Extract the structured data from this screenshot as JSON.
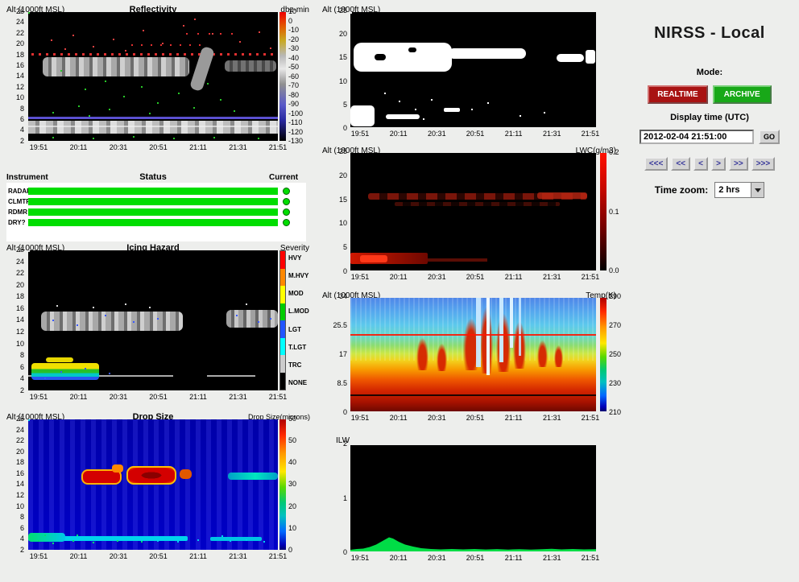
{
  "app": {
    "title": "NIRSS - Local"
  },
  "alt_axis_label": "Alt (1000ft MSL)",
  "time_axis": [
    "19:51",
    "20:11",
    "20:31",
    "20:51",
    "21:11",
    "21:31",
    "21:51"
  ],
  "controls": {
    "mode_label": "Mode:",
    "realtime_button": "REALTIME",
    "archive_button": "ARCHIVE",
    "display_time_label": "Display time (UTC)",
    "display_time_value": "2012-02-04 21:51:00",
    "go_button": "GO",
    "nav_buttons": [
      "<<<",
      "<<",
      "<",
      ">",
      ">>",
      ">>>"
    ],
    "time_zoom_label": "Time zoom:",
    "time_zoom_value": "2 hrs"
  },
  "panels": {
    "reflectivity": {
      "title": "Reflectivity",
      "colorbar_label": "dbz-min",
      "alt_ticks": [
        "26",
        "24",
        "22",
        "20",
        "18",
        "16",
        "14",
        "12",
        "10",
        "8",
        "6",
        "4",
        "2"
      ],
      "colorbar_ticks": [
        "10",
        "0",
        "-10",
        "-20",
        "-30",
        "-40",
        "-50",
        "-60",
        "-70",
        "-80",
        "-90",
        "-100",
        "-110",
        "-120",
        "-130"
      ]
    },
    "status": {
      "title": "Status",
      "instrument_label": "Instrument",
      "current_label": "Current",
      "instruments": [
        "RADAR",
        "CLMTR",
        "RDMR",
        "DRY?"
      ],
      "ok_color": "#00dd00"
    },
    "icing_hazard": {
      "title": "Icing Hazard",
      "colorbar_label": "Severity",
      "alt_ticks": [
        "26",
        "24",
        "22",
        "20",
        "18",
        "16",
        "14",
        "12",
        "10",
        "8",
        "6",
        "4",
        "2"
      ],
      "severity_labels": [
        "HVY",
        "M.HVY",
        "MOD",
        "L.MOD",
        "LGT",
        "T.LGT",
        "TRC",
        "NONE"
      ],
      "severity_colors": [
        "#ff0000",
        "#ff8800",
        "#ffff00",
        "#00cc00",
        "#2255ff",
        "#00ffff",
        "#cccccc",
        "#000000"
      ]
    },
    "drop_size": {
      "title": "Drop Size",
      "colorbar_label": "Drop Size(microns)",
      "alt_ticks": [
        "26",
        "24",
        "22",
        "20",
        "18",
        "16",
        "14",
        "12",
        "10",
        "8",
        "6",
        "4",
        "2"
      ],
      "colorbar_ticks": [
        "60",
        "50",
        "40",
        "30",
        "20",
        "10",
        "0"
      ]
    },
    "cloud_mask": {
      "alt_ticks": [
        "25",
        "20",
        "15",
        "10",
        "5",
        "0"
      ]
    },
    "lwc": {
      "colorbar_label": "LWC(g/m3)",
      "alt_ticks": [
        "25",
        "20",
        "15",
        "10",
        "5",
        "0"
      ],
      "colorbar_ticks": [
        "0.2",
        "0.1",
        "0.0"
      ]
    },
    "temperature": {
      "colorbar_label": "Temp(K)",
      "alt_ticks": [
        "34",
        "25.5",
        "17",
        "8.5",
        "0"
      ],
      "colorbar_ticks": [
        "290",
        "270",
        "250",
        "230",
        "210"
      ]
    },
    "ilw": {
      "label": "ILW",
      "y_ticks": [
        "2",
        "1",
        "0"
      ]
    }
  }
}
